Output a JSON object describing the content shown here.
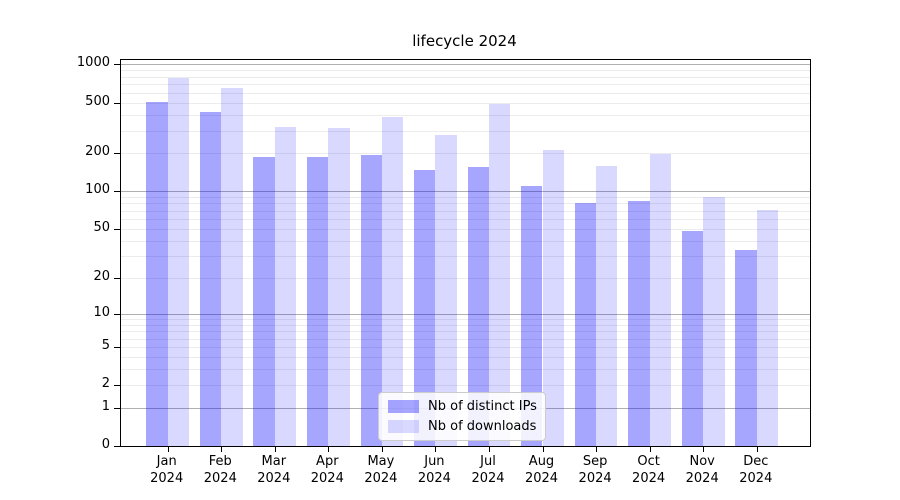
{
  "title": "lifecycle 2024",
  "chart_data": {
    "type": "bar",
    "title": "lifecycle 2024",
    "xlabel": "",
    "ylabel": "",
    "yscale": "log1p (position proportional to log10 of 1+value), linear zero at axis bottom",
    "ylim": [
      0,
      1082
    ],
    "grid": true,
    "y_ticks": [
      0,
      1,
      2,
      5,
      10,
      20,
      50,
      100,
      200,
      500,
      1000
    ],
    "y_major_gridlines": [
      1,
      10,
      100,
      1000
    ],
    "categories": [
      "Jan",
      "Feb",
      "Mar",
      "Apr",
      "May",
      "Jun",
      "Jul",
      "Aug",
      "Sep",
      "Oct",
      "Nov",
      "Dec"
    ],
    "category_year": "2024",
    "legend_position": "lower center",
    "series": [
      {
        "name": "Nb of distinct IPs",
        "color": "#a6a6ff",
        "color_rgba": "rgba(0,0,255,0.35)",
        "values": [
          510,
          425,
          185,
          185,
          192,
          148,
          155,
          110,
          81,
          84,
          48,
          34
        ]
      },
      {
        "name": "Nb of downloads",
        "color": "#d9d9ff",
        "color_rgba": "rgba(0,0,255,0.15)",
        "values": [
          780,
          650,
          322,
          318,
          384,
          278,
          486,
          213,
          157,
          198,
          90,
          71
        ]
      }
    ]
  }
}
